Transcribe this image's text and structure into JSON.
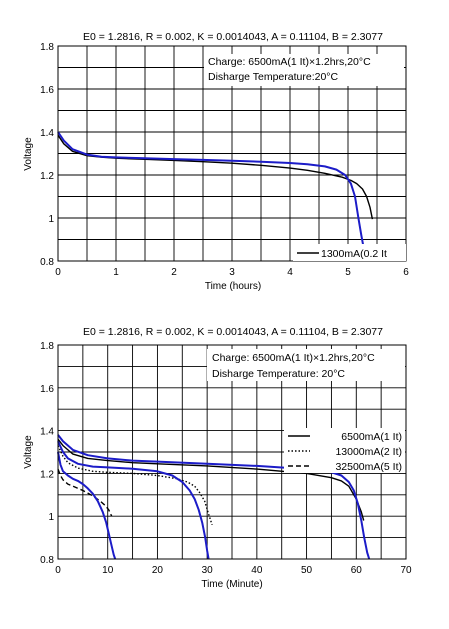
{
  "chart_data": [
    {
      "type": "line",
      "title": "E0 = 1.2816, R = 0.002, K = 0.0014043, A = 0.11104, B = 2.3077",
      "xlabel": "Time (hours)",
      "ylabel": "Voltage",
      "xlim": [
        0,
        6
      ],
      "ylim": [
        0.8,
        1.8
      ],
      "xticks": [
        "0",
        "1",
        "2",
        "3",
        "4",
        "5",
        "6"
      ],
      "yticks": [
        "0.8",
        "1",
        "1.2",
        "1.4",
        "1.6",
        "1.8"
      ],
      "grid": true,
      "annotations": [
        "Charge: 6500mA(1 It)×1.2hrs,20°C",
        "Disharge Temperature:20°C"
      ],
      "legend_position": "bottom-right",
      "series": [
        {
          "name": "1300mA(0.2 It",
          "color": "#000000",
          "dash": "solid",
          "x": [
            0,
            0.1,
            0.25,
            0.5,
            0.75,
            1,
            1.5,
            2,
            2.5,
            3,
            3.5,
            4,
            4.3,
            4.6,
            4.9,
            5.05,
            5.15,
            5.25,
            5.32,
            5.38,
            5.42
          ],
          "y": [
            1.385,
            1.345,
            1.31,
            1.29,
            1.283,
            1.278,
            1.273,
            1.268,
            1.262,
            1.255,
            1.245,
            1.232,
            1.222,
            1.208,
            1.19,
            1.175,
            1.16,
            1.135,
            1.1,
            1.05,
            0.995
          ]
        },
        {
          "name": "",
          "color": "#1c1cc8",
          "dash": "solid",
          "x": [
            0,
            0.1,
            0.25,
            0.5,
            0.75,
            1,
            1.5,
            2,
            2.5,
            3,
            3.5,
            4,
            4.3,
            4.6,
            4.8,
            4.95,
            5.05,
            5.12,
            5.18,
            5.23,
            5.27,
            5.3
          ],
          "y": [
            1.4,
            1.36,
            1.32,
            1.295,
            1.285,
            1.282,
            1.278,
            1.274,
            1.27,
            1.266,
            1.262,
            1.256,
            1.25,
            1.24,
            1.225,
            1.2,
            1.16,
            1.1,
            1.0,
            0.92,
            0.86,
            0.8
          ]
        }
      ]
    },
    {
      "type": "line",
      "title": "E0 = 1.2816, R = 0.002, K = 0.0014043, A = 0.11104, B = 2.3077",
      "xlabel": "Time (Minute)",
      "ylabel": "Voltage",
      "xlim": [
        0,
        70
      ],
      "ylim": [
        0.8,
        1.8
      ],
      "xticks": [
        "0",
        "10",
        "20",
        "30",
        "40",
        "50",
        "60",
        "70"
      ],
      "yticks": [
        "0.8",
        "1",
        "1.2",
        "1.4",
        "1.6",
        "1.8"
      ],
      "grid": true,
      "annotations": [
        "Charge: 6500mA(1 It)×1.2hrs,20°C",
        "Disharge Temperature: 20°C"
      ],
      "legend_position": "right",
      "series": [
        {
          "name": "6500mA(1 It)",
          "color": "#000000",
          "dash": "solid",
          "x": [
            0,
            1,
            3,
            6,
            10,
            15,
            20,
            30,
            40,
            50,
            55,
            57,
            58.5,
            60,
            61,
            61.5
          ],
          "y": [
            1.36,
            1.33,
            1.29,
            1.27,
            1.26,
            1.25,
            1.245,
            1.235,
            1.22,
            1.2,
            1.18,
            1.165,
            1.14,
            1.08,
            1.02,
            0.98
          ]
        },
        {
          "name": "13000mA(2 It)",
          "color": "#000000",
          "dash": "dotted",
          "x": [
            0,
            1,
            2,
            4,
            7,
            10,
            15,
            20,
            24,
            26,
            27.5,
            28.5,
            29.5,
            30.3,
            31
          ],
          "y": [
            1.33,
            1.28,
            1.25,
            1.225,
            1.21,
            1.205,
            1.2,
            1.19,
            1.175,
            1.16,
            1.14,
            1.11,
            1.07,
            1.01,
            0.96
          ]
        },
        {
          "name": "32500mA(5 It)",
          "color": "#000000",
          "dash": "dashed",
          "x": [
            0,
            0.5,
            1,
            2,
            3,
            5,
            7,
            8.5,
            9.5,
            10.2,
            10.8
          ],
          "y": [
            1.22,
            1.19,
            1.17,
            1.15,
            1.14,
            1.12,
            1.095,
            1.07,
            1.05,
            1.03,
            1.0
          ]
        },
        {
          "name": "",
          "color": "#1c1cc8",
          "dash": "solid",
          "x": [
            0,
            1,
            3,
            6,
            10,
            15,
            20,
            30,
            40,
            50,
            55,
            57,
            58.5,
            59.5,
            60.3,
            61,
            61.6,
            62.2,
            62.6
          ],
          "y": [
            1.38,
            1.35,
            1.31,
            1.285,
            1.27,
            1.26,
            1.255,
            1.245,
            1.235,
            1.22,
            1.205,
            1.19,
            1.16,
            1.12,
            1.06,
            0.98,
            0.9,
            0.83,
            0.8
          ]
        },
        {
          "name": "",
          "color": "#1c1cc8",
          "dash": "solid",
          "x": [
            0,
            1,
            2,
            4,
            7,
            10,
            15,
            20,
            23,
            25,
            26.5,
            27.5,
            28.3,
            29,
            29.6,
            30,
            30.3
          ],
          "y": [
            1.35,
            1.3,
            1.27,
            1.245,
            1.232,
            1.228,
            1.222,
            1.21,
            1.19,
            1.16,
            1.12,
            1.08,
            1.03,
            0.97,
            0.9,
            0.84,
            0.8
          ]
        },
        {
          "name": "",
          "color": "#1c1cc8",
          "dash": "solid",
          "x": [
            0,
            0.5,
            1,
            2,
            3,
            4,
            5,
            6,
            7,
            8,
            9,
            9.7,
            10.3,
            10.8,
            11.2,
            11.5
          ],
          "y": [
            1.3,
            1.24,
            1.21,
            1.19,
            1.175,
            1.165,
            1.15,
            1.13,
            1.105,
            1.07,
            1.02,
            0.97,
            0.91,
            0.86,
            0.82,
            0.8
          ]
        }
      ]
    }
  ]
}
